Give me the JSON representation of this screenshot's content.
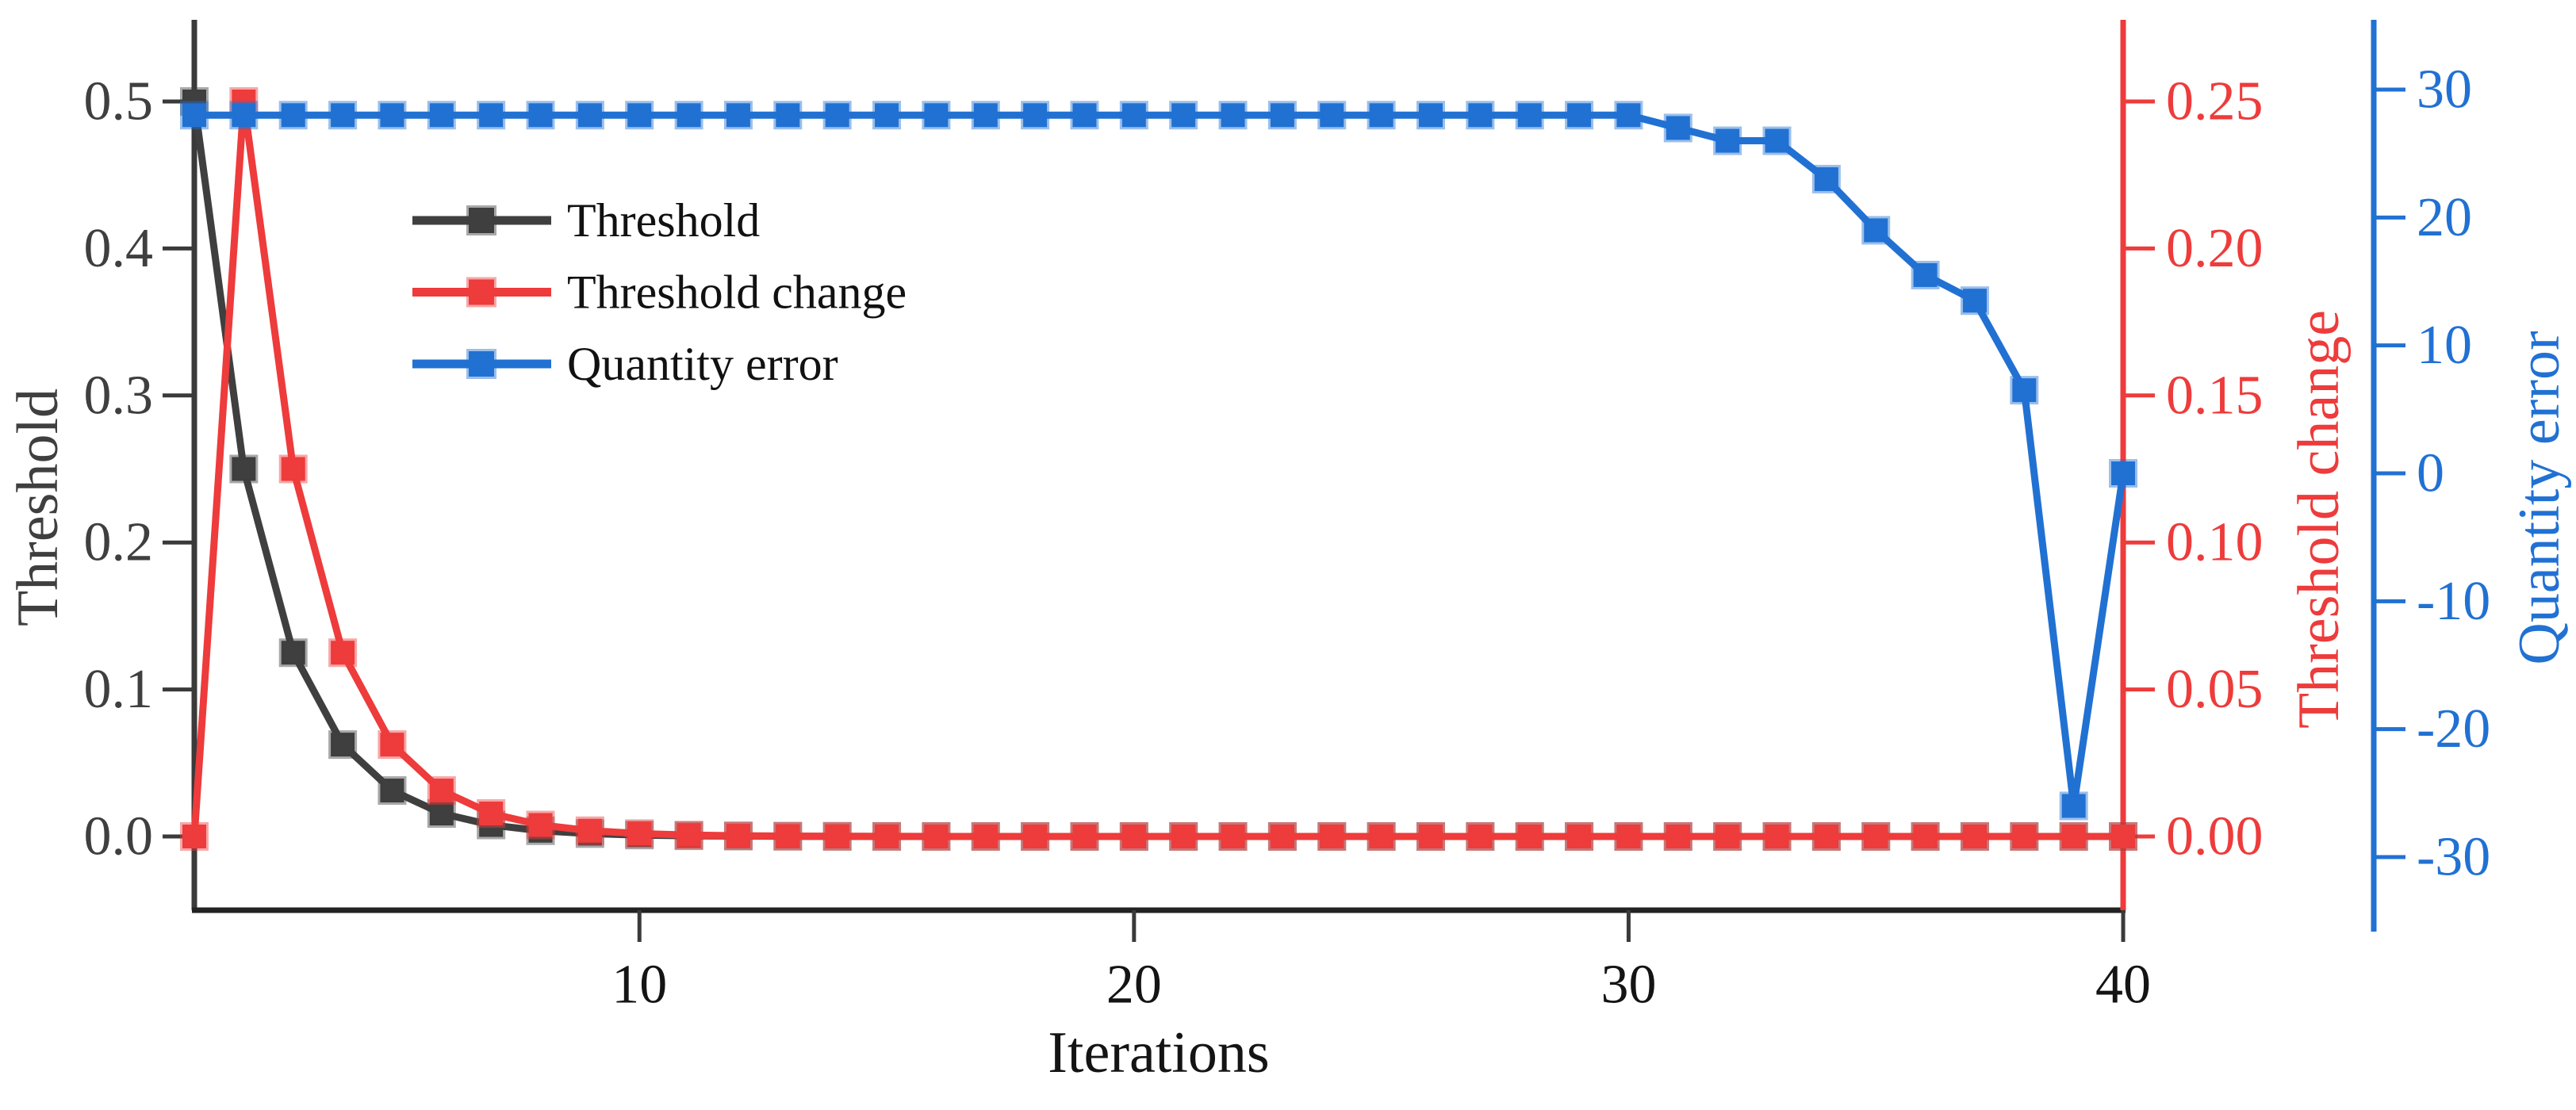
{
  "chart_data": {
    "type": "line",
    "title": "",
    "xlabel": "Iterations",
    "x": [
      1,
      2,
      3,
      4,
      5,
      6,
      7,
      8,
      9,
      10,
      11,
      12,
      13,
      14,
      15,
      16,
      17,
      18,
      19,
      20,
      21,
      22,
      23,
      24,
      25,
      26,
      27,
      28,
      29,
      30,
      31,
      32,
      33,
      34,
      35,
      36,
      37,
      38,
      39,
      40
    ],
    "x_ticks": [
      10,
      20,
      30,
      40
    ],
    "x_range": [
      1,
      40
    ],
    "grid": false,
    "marker": "square",
    "axes": {
      "left": {
        "label": "Threshold",
        "color": "#3f3f3f",
        "range": [
          0,
          0.5
        ],
        "ticks": [
          0.5,
          0.4,
          0.3,
          0.2,
          0.1,
          0.0
        ],
        "tick_decimals": 1
      },
      "right_inner": {
        "label": "Threshold change",
        "color": "#ee3b3b",
        "range": [
          0,
          0.25
        ],
        "ticks": [
          0.25,
          0.2,
          0.15,
          0.1,
          0.05,
          0.0
        ],
        "tick_decimals": 2
      },
      "right_outer": {
        "label": "Quantity error",
        "color": "#2171d3",
        "range": [
          -30,
          30
        ],
        "ticks": [
          30,
          20,
          10,
          0,
          -10,
          -20,
          -30
        ],
        "tick_decimals": 0
      }
    },
    "legend": {
      "position": "upper-left",
      "entries": [
        "Threshold",
        "Threshold change",
        "Quantity error"
      ]
    },
    "series": [
      {
        "name": "Threshold",
        "axis": "left",
        "color": "#3f3f3f",
        "line_style": "solid",
        "values": [
          0.5,
          0.25,
          0.125,
          0.0625,
          0.03125,
          0.015625,
          0.0078125,
          0.00390625,
          0.001953125,
          0.0009765625,
          0.00048828125,
          0.000244140625,
          0.00012207,
          6.104e-05,
          3.052e-05,
          1.526e-05,
          7.63e-06,
          3.81e-06,
          1.91e-06,
          9.5e-07,
          0,
          0,
          0,
          0,
          0,
          0,
          0,
          0,
          0,
          0,
          0,
          0,
          0,
          0,
          0,
          0,
          0,
          0,
          0,
          0
        ]
      },
      {
        "name": "Threshold change",
        "axis": "right_inner",
        "color": "#ee3b3b",
        "line_style": "solid",
        "values": [
          0,
          0.25,
          0.125,
          0.0625,
          0.03125,
          0.015625,
          0.0078125,
          0.00390625,
          0.001953125,
          0.0009765625,
          0.00048828125,
          0.000244140625,
          0.00012207,
          6.104e-05,
          3.052e-05,
          1.526e-05,
          7.63e-06,
          3.81e-06,
          1.91e-06,
          9.5e-07,
          0,
          0,
          0,
          0,
          0,
          0,
          0,
          0,
          0,
          0,
          0,
          0,
          0,
          0,
          0,
          0,
          0,
          0,
          0,
          0
        ]
      },
      {
        "name": "Quantity error",
        "axis": "right_outer",
        "color": "#2171d3",
        "line_style": "solid",
        "values": [
          28,
          28,
          28,
          28,
          28,
          28,
          28,
          28,
          28,
          28,
          28,
          28,
          28,
          28,
          28,
          28,
          28,
          28,
          28,
          28,
          28,
          28,
          28,
          28,
          28,
          28,
          28,
          28,
          28,
          28,
          27,
          26,
          26,
          23,
          19,
          15.5,
          13.5,
          6.5,
          -26,
          0
        ]
      }
    ]
  }
}
